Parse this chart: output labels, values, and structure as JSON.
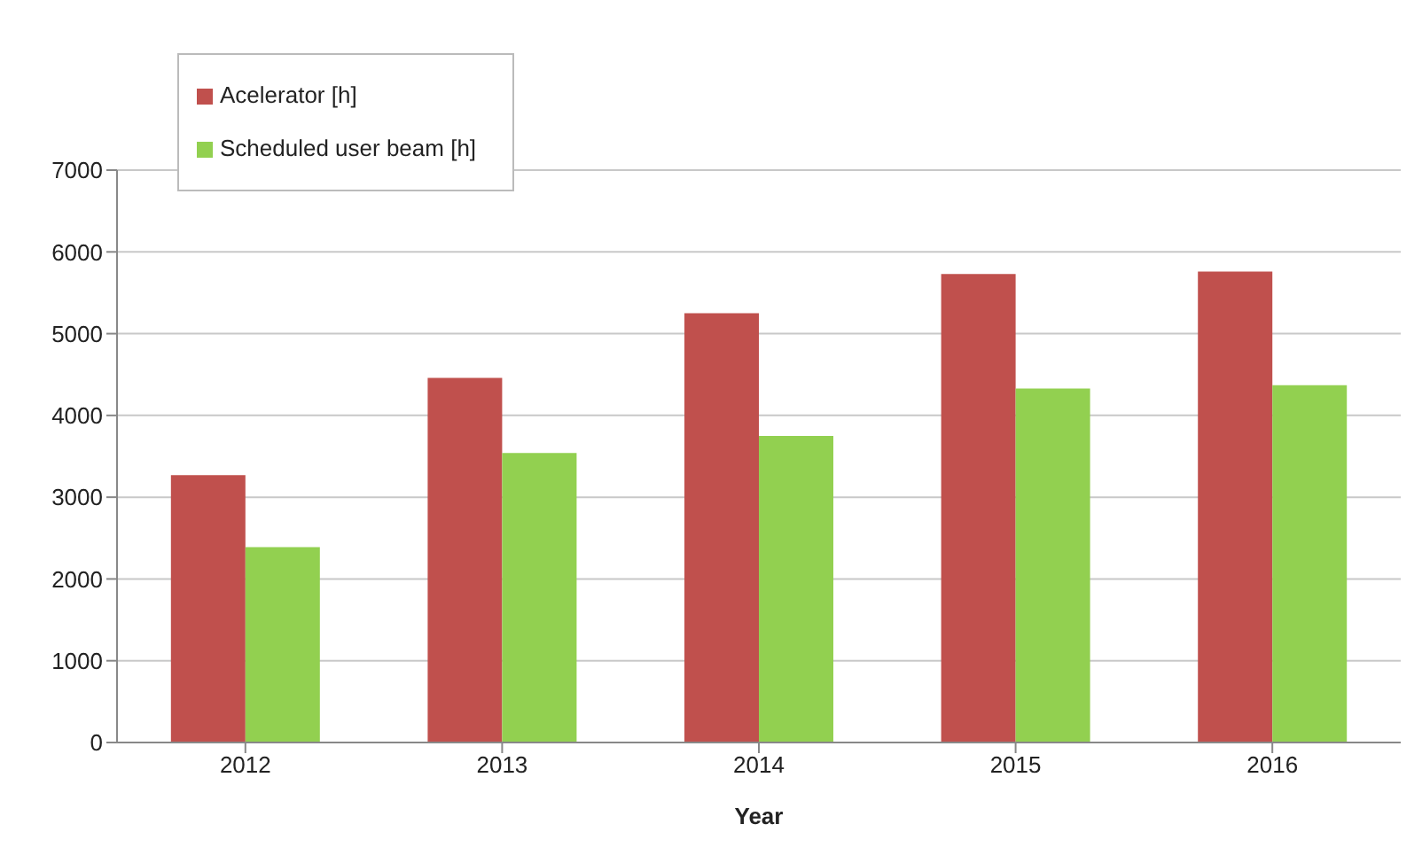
{
  "chart_data": {
    "type": "bar",
    "xlabel": "Year",
    "categories": [
      "2012",
      "2013",
      "2014",
      "2015",
      "2016"
    ],
    "series": [
      {
        "name": "Acelerator [h]",
        "color": "#c0504d",
        "values": [
          3270,
          4460,
          5250,
          5730,
          5760
        ]
      },
      {
        "name": "Scheduled user beam [h]",
        "color": "#92d050",
        "values": [
          2390,
          3540,
          3750,
          4330,
          4370
        ]
      }
    ],
    "ylim": [
      0,
      7000
    ],
    "yticks": [
      0,
      1000,
      2000,
      3000,
      4000,
      5000,
      6000,
      7000
    ],
    "grid": "y",
    "legend": "top left"
  }
}
